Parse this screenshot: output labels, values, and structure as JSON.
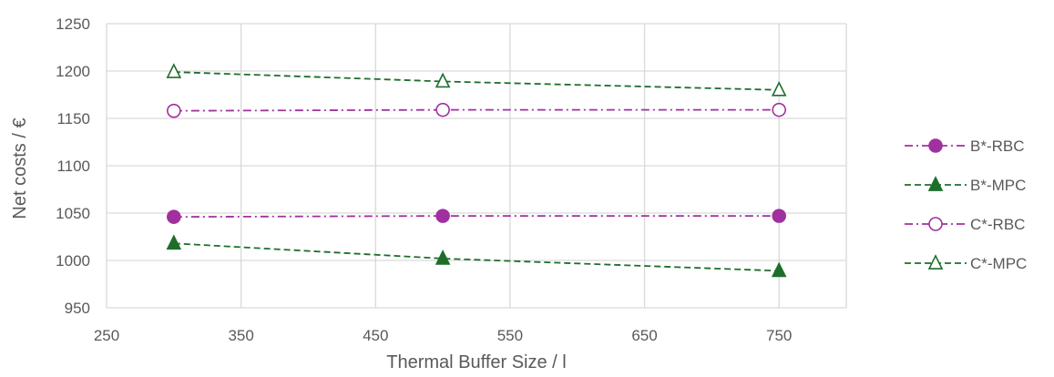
{
  "chart_data": {
    "type": "line",
    "title": "",
    "xlabel": "Thermal Buffer Size / l",
    "ylabel": "Net costs / €",
    "xlim": [
      250,
      800
    ],
    "ylim": [
      950,
      1250
    ],
    "xticks": [
      250,
      350,
      450,
      550,
      650,
      750
    ],
    "yticks": [
      950,
      1000,
      1050,
      1100,
      1150,
      1200,
      1250
    ],
    "grid": true,
    "legend_position": "right",
    "series": [
      {
        "name": "B*-RBC",
        "color": "#A0309F",
        "line": "dashdot",
        "marker": "circle-filled",
        "x": [
          300,
          500,
          750
        ],
        "y": [
          1046,
          1047,
          1047
        ]
      },
      {
        "name": "B*-MPC",
        "color": "#1E6E2B",
        "line": "dashed",
        "marker": "triangle-filled",
        "x": [
          300,
          500,
          750
        ],
        "y": [
          1018,
          1002,
          989
        ]
      },
      {
        "name": "C*-RBC",
        "color": "#A0309F",
        "line": "dashdot",
        "marker": "circle-open",
        "x": [
          300,
          500,
          750
        ],
        "y": [
          1158,
          1159,
          1159
        ]
      },
      {
        "name": "C*-MPC",
        "color": "#1E6E2B",
        "line": "dashed",
        "marker": "triangle-open",
        "x": [
          300,
          500,
          750
        ],
        "y": [
          1199,
          1189,
          1180
        ]
      }
    ]
  }
}
